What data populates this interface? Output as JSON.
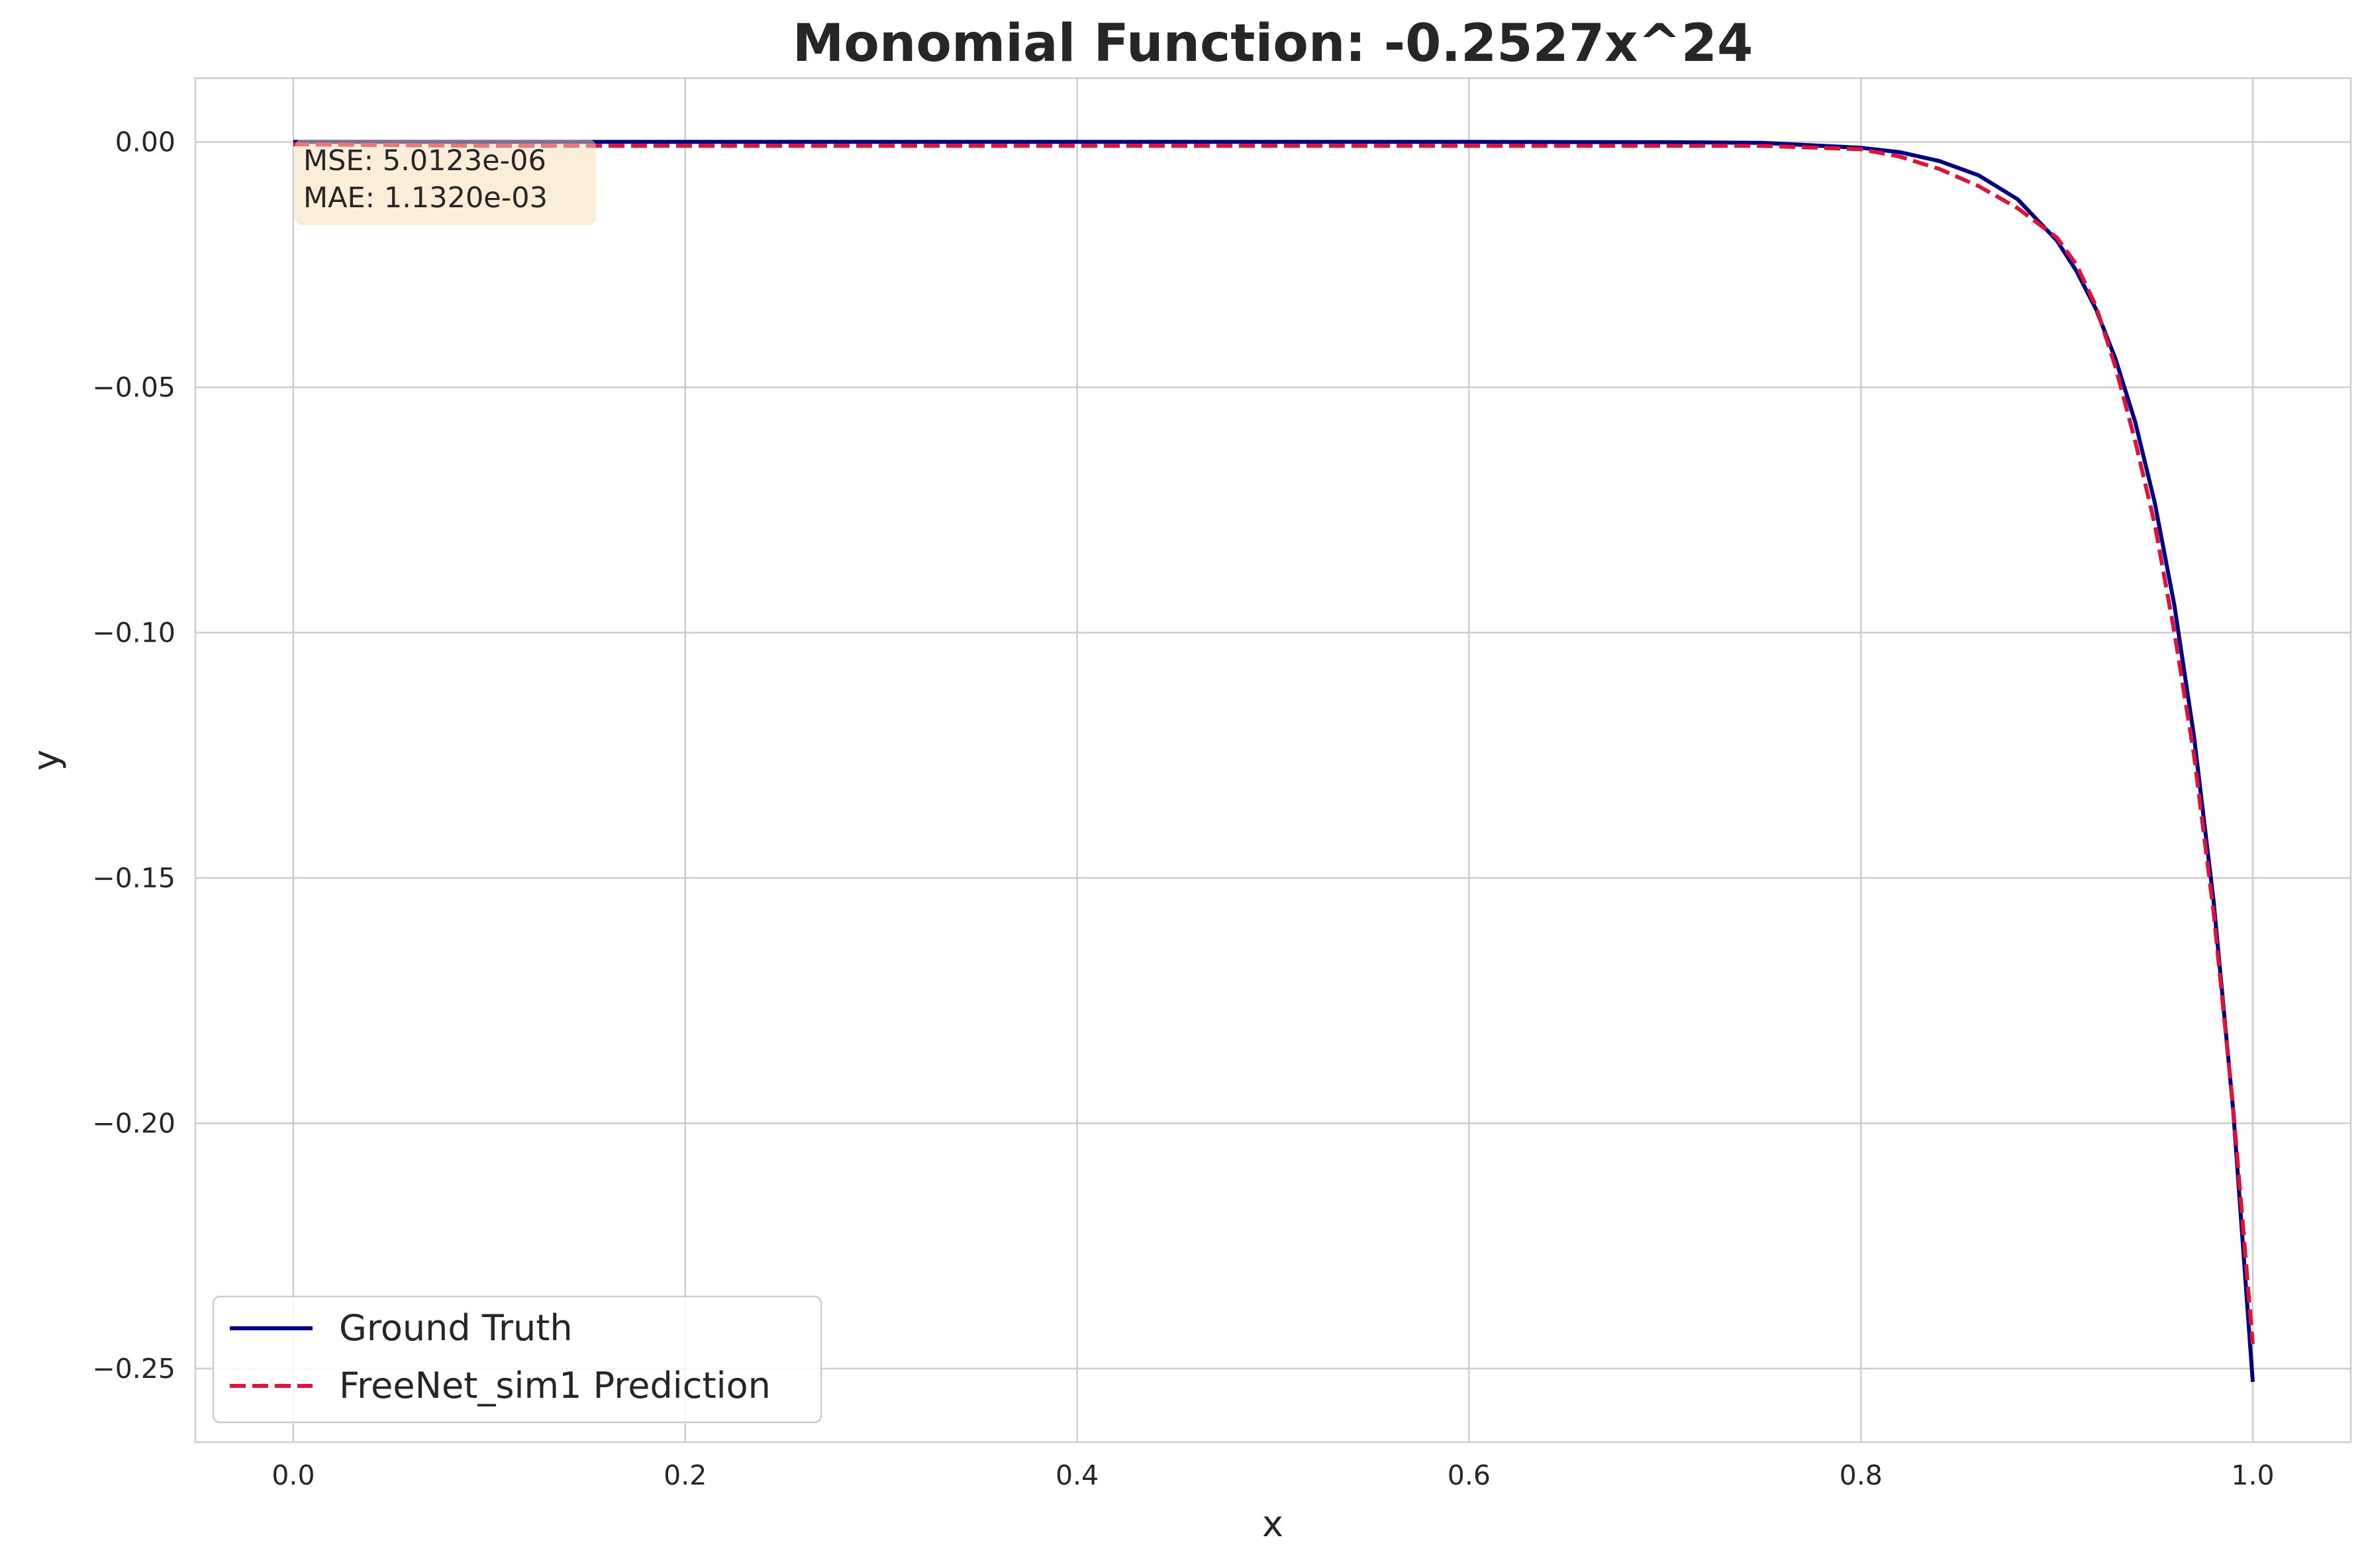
{
  "chart_data": {
    "type": "line",
    "title": "Monomial Function: -0.2527x^24",
    "xlabel": "x",
    "ylabel": "y",
    "xlim": [
      -0.05,
      1.05
    ],
    "ylim": [
      -0.265,
      0.013
    ],
    "x_ticks": [
      0.0,
      0.2,
      0.4,
      0.6,
      0.8,
      1.0
    ],
    "x_tick_labels": [
      "0.0",
      "0.2",
      "0.4",
      "0.6",
      "0.8",
      "1.0"
    ],
    "y_ticks": [
      0.0,
      -0.05,
      -0.1,
      -0.15,
      -0.2,
      -0.25
    ],
    "y_tick_labels": [
      "0.00",
      "−0.05",
      "−0.10",
      "−0.15",
      "−0.20",
      "−0.25"
    ],
    "grid": true,
    "legend_position": "lower-left",
    "stats": {
      "mse": "MSE: 5.0123e-06",
      "mae": "MAE: 1.1320e-03"
    },
    "series": [
      {
        "name": "Ground Truth",
        "color": "#000080",
        "style": "solid",
        "x": [
          0.0,
          0.1,
          0.2,
          0.3,
          0.4,
          0.5,
          0.6,
          0.7,
          0.75,
          0.8,
          0.82,
          0.84,
          0.86,
          0.88,
          0.9,
          0.91,
          0.92,
          0.93,
          0.94,
          0.95,
          0.96,
          0.97,
          0.98,
          0.99,
          1.0
        ],
        "y": [
          0.0,
          0.0,
          0.0,
          0.0,
          0.0,
          0.0,
          0.0,
          -5e-05,
          -0.0002,
          -0.0012,
          -0.0021,
          -0.0039,
          -0.0068,
          -0.0117,
          -0.0201,
          -0.0263,
          -0.0341,
          -0.0443,
          -0.0571,
          -0.0736,
          -0.0945,
          -0.1212,
          -0.1548,
          -0.1975,
          -0.2527
        ]
      },
      {
        "name": "FreeNet_sim1 Prediction",
        "color": "#dc143c",
        "style": "dashed",
        "x": [
          0.0,
          0.1,
          0.2,
          0.3,
          0.4,
          0.5,
          0.6,
          0.7,
          0.75,
          0.8,
          0.82,
          0.84,
          0.86,
          0.88,
          0.9,
          0.91,
          0.92,
          0.93,
          0.94,
          0.95,
          0.96,
          0.97,
          0.98,
          0.99,
          1.0
        ],
        "y": [
          -0.0005,
          -0.0008,
          -0.0008,
          -0.0008,
          -0.0008,
          -0.0008,
          -0.0008,
          -0.0008,
          -0.0008,
          -0.0015,
          -0.003,
          -0.0055,
          -0.009,
          -0.0135,
          -0.0195,
          -0.025,
          -0.0335,
          -0.046,
          -0.061,
          -0.078,
          -0.1,
          -0.125,
          -0.157,
          -0.197,
          -0.245
        ]
      }
    ]
  }
}
